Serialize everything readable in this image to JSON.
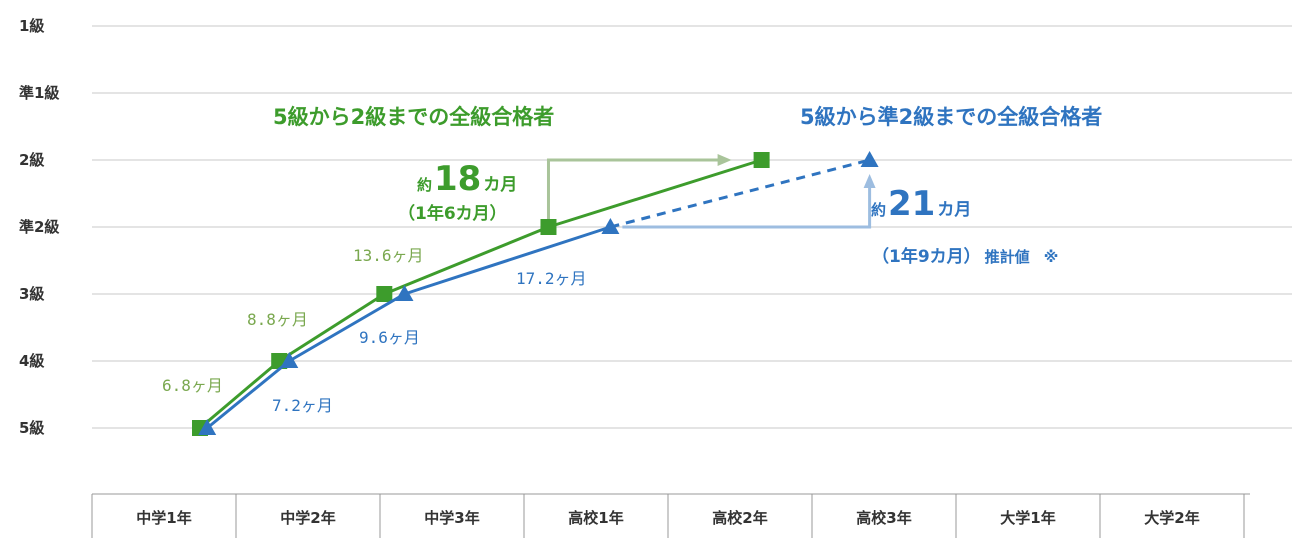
{
  "colors": {
    "green": "#3d9c2c",
    "green_label": "#7aa84f",
    "blue": "#2f74c0",
    "green_arrow": "#a9c49a",
    "blue_arrow": "#9dbde0",
    "grid": "#c8c8c8"
  },
  "chart_data": {
    "type": "line",
    "title": "",
    "xlabel": "",
    "ylabel": "",
    "y_ticks": [
      "5級",
      "4級",
      "3級",
      "準2級",
      "2級",
      "準1級",
      "1級"
    ],
    "x_ticks": [
      "中学1年",
      "中学2年",
      "中学3年",
      "高校1年",
      "高校2年",
      "高校3年",
      "大学1年",
      "大学2年"
    ],
    "series": [
      {
        "name": "5級から2級までの全級合格者",
        "marker": "square",
        "color": "#3d9c2c",
        "points": [
          {
            "x": 0.0,
            "y": 0
          },
          {
            "x": 0.55,
            "y": 1
          },
          {
            "x": 1.28,
            "y": 2
          },
          {
            "x": 2.42,
            "y": 3
          },
          {
            "x": 3.9,
            "y": 4
          }
        ],
        "interval_labels": [
          "6.8ヶ月",
          "8.8ヶ月",
          "13.6ヶ月"
        ]
      },
      {
        "name": "5級から準2級までの全級合格者",
        "marker": "triangle",
        "color": "#2f74c0",
        "points": [
          {
            "x": 0.05,
            "y": 0
          },
          {
            "x": 0.62,
            "y": 1
          },
          {
            "x": 1.42,
            "y": 2
          },
          {
            "x": 2.85,
            "y": 3
          },
          {
            "x": 4.65,
            "y": 4
          }
        ],
        "dashed_from_index": 3,
        "interval_labels": [
          "7.2ヶ月",
          "9.6ヶ月",
          "17.2ヶ月"
        ]
      }
    ],
    "annotations": {
      "green": {
        "prefix": "約",
        "number": "18",
        "unit": "カ月",
        "sub": "（1年6カ月）"
      },
      "blue": {
        "prefix": "約",
        "number": "21",
        "unit": "カ月",
        "sub": "（1年9カ月）",
        "note": "推計値",
        "mark": "※"
      }
    },
    "grid": true,
    "legend": "inline"
  }
}
